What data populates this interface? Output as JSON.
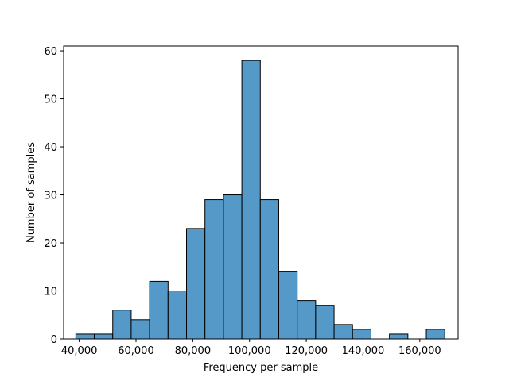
{
  "chart_data": {
    "type": "bar",
    "title": "",
    "xlabel": "Frequency per sample",
    "ylabel": "Number of samples",
    "bar_color": "#5499c7",
    "edge_color": "#000000",
    "grid": false,
    "legend": "none",
    "xlim": [
      34500,
      173500
    ],
    "ylim": [
      0,
      61
    ],
    "x_ticks": [
      {
        "value": 40000,
        "label": "40,000"
      },
      {
        "value": 60000,
        "label": "60,000"
      },
      {
        "value": 80000,
        "label": "80,000"
      },
      {
        "value": 100000,
        "label": "100,000"
      },
      {
        "value": 120000,
        "label": "120,000"
      },
      {
        "value": 140000,
        "label": "140,000"
      },
      {
        "value": 160000,
        "label": "160,000"
      }
    ],
    "y_ticks": [
      {
        "value": 0,
        "label": "0"
      },
      {
        "value": 10,
        "label": "10"
      },
      {
        "value": 20,
        "label": "20"
      },
      {
        "value": 30,
        "label": "30"
      },
      {
        "value": 40,
        "label": "40"
      },
      {
        "value": 50,
        "label": "50"
      },
      {
        "value": 60,
        "label": "60"
      }
    ],
    "bins": [
      {
        "x0": 38800,
        "x1": 45300,
        "count": 1
      },
      {
        "x0": 45300,
        "x1": 51800,
        "count": 1
      },
      {
        "x0": 51800,
        "x1": 58300,
        "count": 6
      },
      {
        "x0": 58300,
        "x1": 64800,
        "count": 4
      },
      {
        "x0": 64800,
        "x1": 71300,
        "count": 12
      },
      {
        "x0": 71300,
        "x1": 77800,
        "count": 10
      },
      {
        "x0": 77800,
        "x1": 84300,
        "count": 23
      },
      {
        "x0": 84300,
        "x1": 90800,
        "count": 29
      },
      {
        "x0": 90800,
        "x1": 97300,
        "count": 30
      },
      {
        "x0": 97300,
        "x1": 103800,
        "count": 58
      },
      {
        "x0": 103800,
        "x1": 110300,
        "count": 29
      },
      {
        "x0": 110300,
        "x1": 116800,
        "count": 14
      },
      {
        "x0": 116800,
        "x1": 123300,
        "count": 8
      },
      {
        "x0": 123300,
        "x1": 129800,
        "count": 7
      },
      {
        "x0": 129800,
        "x1": 136300,
        "count": 3
      },
      {
        "x0": 136300,
        "x1": 142800,
        "count": 2
      },
      {
        "x0": 142800,
        "x1": 149300,
        "count": 0
      },
      {
        "x0": 149300,
        "x1": 155800,
        "count": 1
      },
      {
        "x0": 155800,
        "x1": 162300,
        "count": 0
      },
      {
        "x0": 162300,
        "x1": 168800,
        "count": 2
      }
    ]
  }
}
